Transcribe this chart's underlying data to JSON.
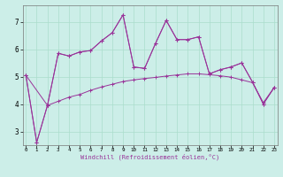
{
  "xlabel": "Windchill (Refroidissement éolien,°C)",
  "background_color": "#cceee8",
  "line_color": "#993399",
  "grid_color": "#aaddcc",
  "xlim_min": 0,
  "xlim_max": 23,
  "ylim_min": 2.5,
  "ylim_max": 7.6,
  "yticks": [
    3,
    4,
    5,
    6,
    7
  ],
  "xticks": [
    0,
    1,
    2,
    3,
    4,
    5,
    6,
    7,
    8,
    9,
    10,
    11,
    12,
    13,
    14,
    15,
    16,
    17,
    18,
    19,
    20,
    21,
    22,
    23
  ],
  "line1_x": [
    0,
    1,
    2,
    3,
    4,
    5,
    6,
    7,
    8,
    9,
    10,
    11,
    12,
    13,
    14,
    15,
    16,
    17,
    18,
    19,
    20,
    21,
    22,
    23
  ],
  "line1_y": [
    5.05,
    2.6,
    3.95,
    5.85,
    5.75,
    5.9,
    5.95,
    6.3,
    6.6,
    7.25,
    5.35,
    5.3,
    6.2,
    7.05,
    6.35,
    6.35,
    6.45,
    5.1,
    5.25,
    5.35,
    5.5,
    4.8,
    4.0,
    4.6
  ],
  "line2_x": [
    0,
    1,
    2,
    3,
    4,
    5,
    6,
    7,
    8,
    9,
    10,
    11,
    12,
    13,
    14,
    15,
    16,
    17,
    18,
    19,
    20,
    21,
    22,
    23
  ],
  "line2_y": [
    5.05,
    2.6,
    3.95,
    4.1,
    4.25,
    4.35,
    4.5,
    4.62,
    4.72,
    4.82,
    4.88,
    4.93,
    4.97,
    5.02,
    5.06,
    5.1,
    5.1,
    5.07,
    5.03,
    4.98,
    4.88,
    4.78,
    4.05,
    4.6
  ],
  "line3_x": [
    0,
    2,
    3,
    4,
    5,
    6,
    7,
    8,
    9,
    10,
    11,
    12,
    13,
    14,
    15,
    16,
    17,
    18,
    19,
    20,
    21,
    22,
    23
  ],
  "line3_y": [
    5.05,
    3.95,
    5.85,
    5.75,
    5.9,
    5.95,
    6.3,
    6.6,
    7.25,
    5.35,
    5.3,
    6.2,
    7.05,
    6.35,
    6.35,
    6.45,
    5.1,
    5.25,
    5.35,
    5.5,
    4.8,
    4.0,
    4.6
  ]
}
